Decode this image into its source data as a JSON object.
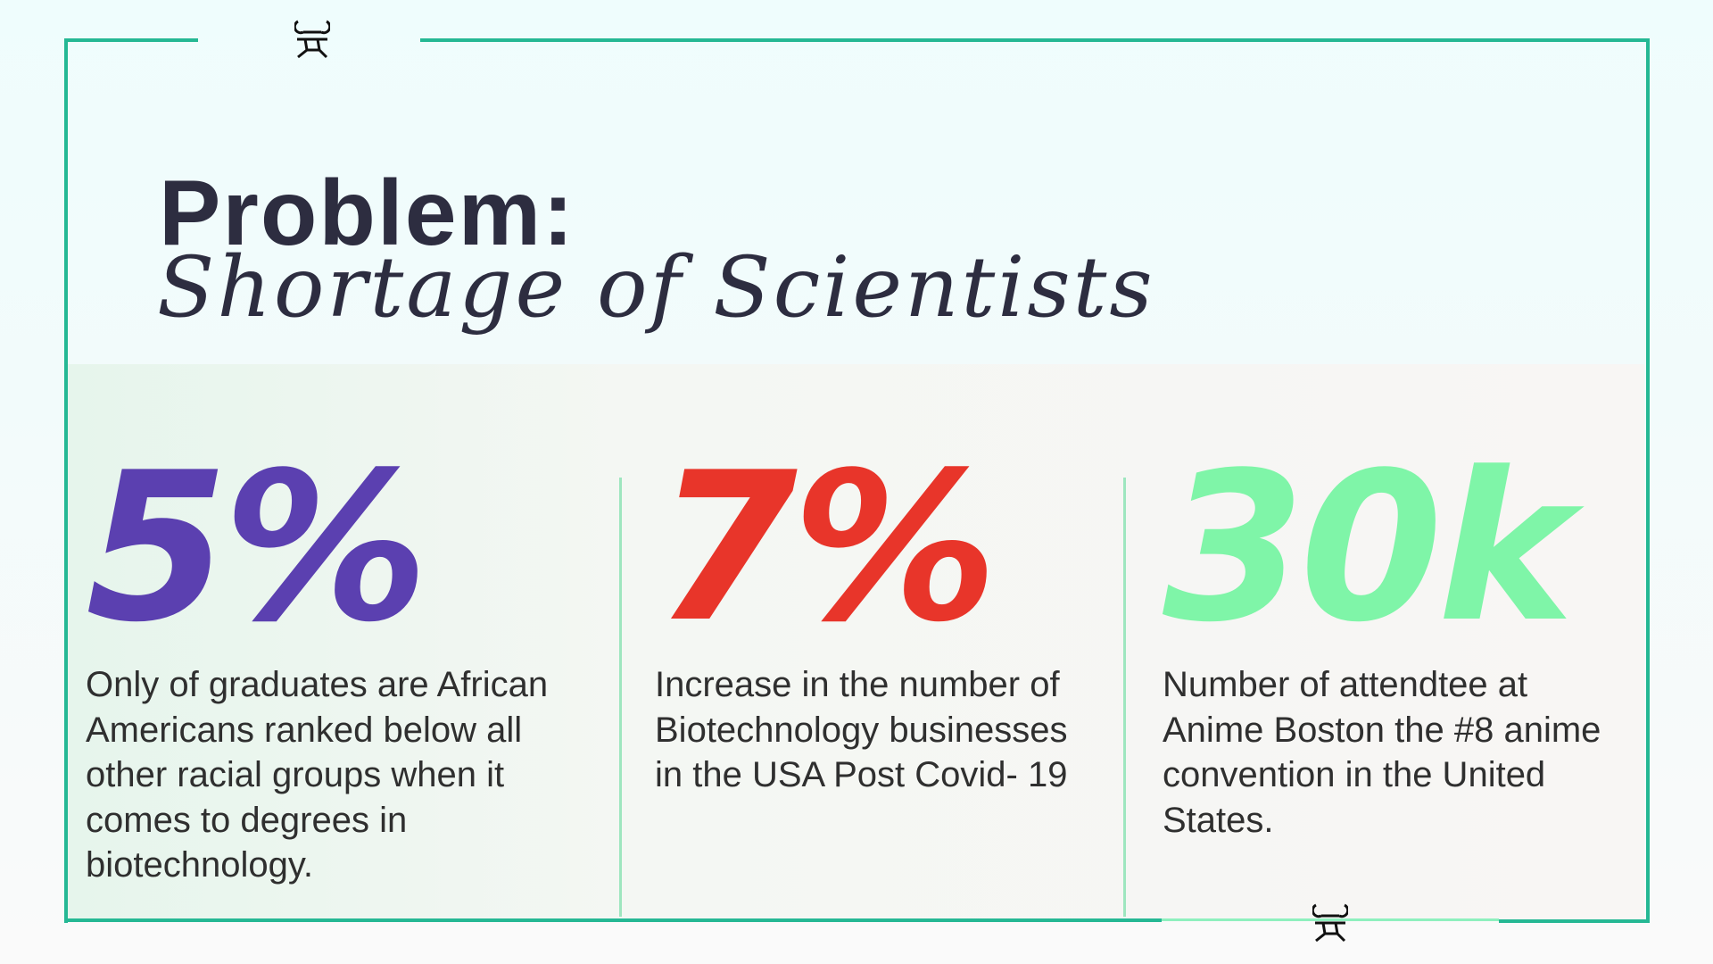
{
  "logo_text": "꒒",
  "title": "Problem:",
  "subtitle": "Shortage of Scientists",
  "colors": {
    "frame": "#25b894",
    "stat1": "#5b40b0",
    "stat2": "#e8352a",
    "stat3": "#7ff5a8"
  },
  "stats": [
    {
      "value": "5%",
      "description": "Only of graduates are African Americans ranked below all other racial groups when it comes to degrees in biotechnology."
    },
    {
      "value": "7%",
      "description": "Increase in the number of Biotechnology businesses in the USA Post Covid- 19"
    },
    {
      "value": "30k",
      "description": "Number of attendtee at Anime Boston the #8 anime convention in the United States."
    }
  ]
}
